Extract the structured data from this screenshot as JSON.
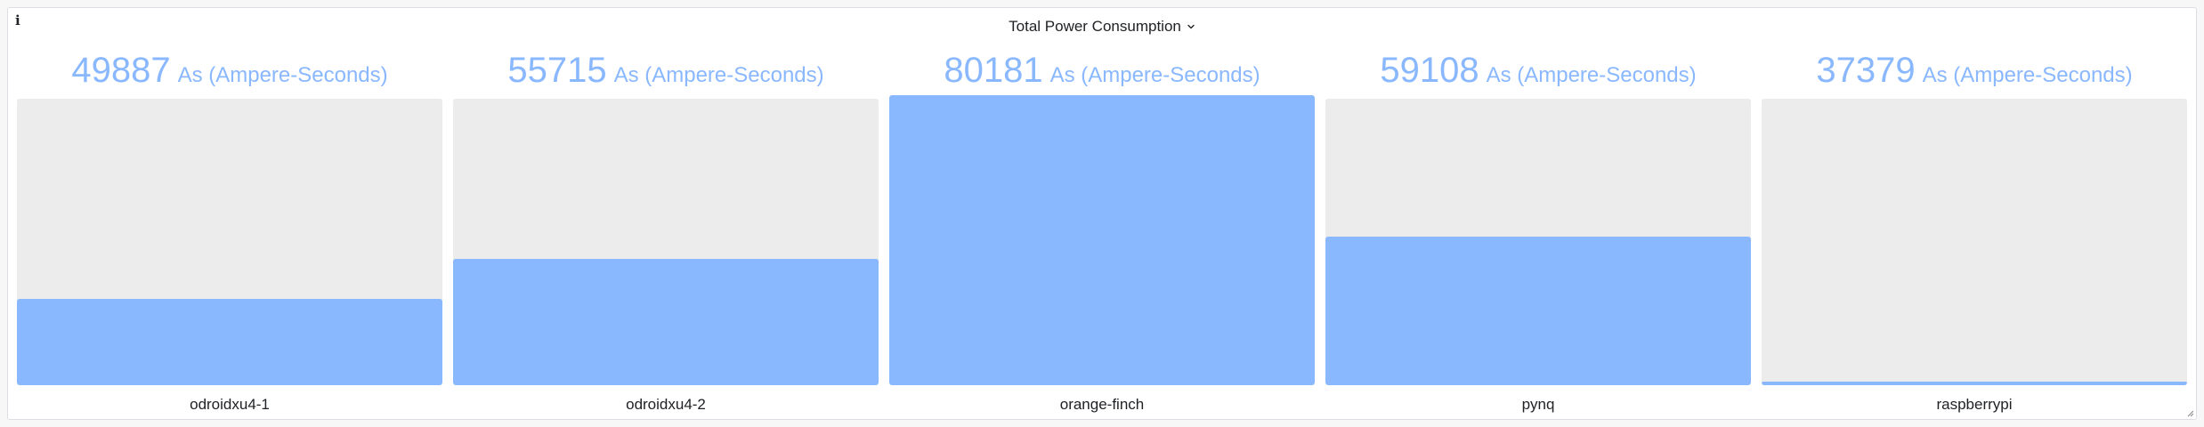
{
  "panel": {
    "title": "Total Power Consumption",
    "info_icon": "info-icon",
    "menu_icon": "chevron-down-icon"
  },
  "colors": {
    "value_text": "#8ab8ff",
    "bar_fill": "#8ab8ff",
    "bar_track": "#ececec",
    "label_text": "#202226"
  },
  "chart_data": {
    "type": "bar",
    "title": "Total Power Consumption",
    "unit": "As (Ampere-Seconds)",
    "categories": [
      "odroidxu4-1",
      "odroidxu4-2",
      "orange-finch",
      "pynq",
      "raspberrypi"
    ],
    "values": [
      49887,
      55715,
      80181,
      59108,
      37379
    ],
    "display_values": [
      "49887",
      "55715",
      "80181",
      "59108",
      "37379"
    ],
    "fill_fraction": [
      0.3,
      0.44,
      1.0,
      0.52,
      0.01
    ],
    "grid": false
  }
}
